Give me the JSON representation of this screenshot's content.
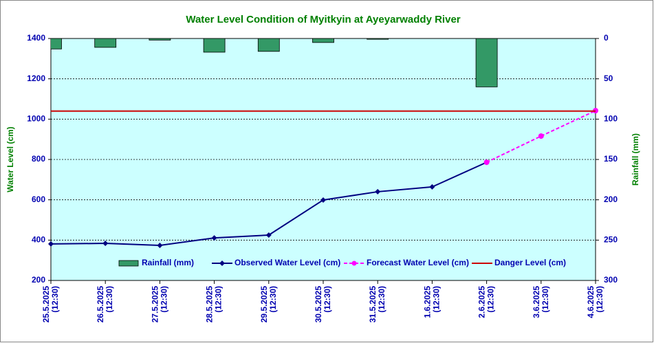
{
  "chart_data": {
    "type": "line",
    "title": "Water Level Condition of Myitkyin at Ayeyarwaddy River",
    "y_label": "Water Level (cm)",
    "y2_label": "Rainfall (mm)",
    "categories": [
      "25.5.2025 (12:30)",
      "26.5.2025 (12:30)",
      "27.5.2025 (12:30)",
      "28.5.2025 (12:30)",
      "29.5.2025 (12:30)",
      "30.5.2025 (12:30)",
      "31.5.2025 (12:30)",
      "1.6.2025 (12:30)",
      "2.6.2025 (12:30)",
      "3.6.2025 (12:30)",
      "4.6.2025 (12:30)"
    ],
    "series": [
      {
        "name": "Rainfall (mm)",
        "type": "bar",
        "axis": "y2",
        "color": "#339966",
        "values": [
          13,
          11,
          2,
          17,
          16,
          5,
          1,
          0,
          60,
          null,
          null
        ]
      },
      {
        "name": "Observed Water Level (cm)",
        "type": "line",
        "color": "#000080",
        "marker": "diamond",
        "values": [
          381,
          384,
          374,
          411,
          425,
          599,
          640,
          664,
          786,
          null,
          null
        ]
      },
      {
        "name": "Forecast Water Level (cm)",
        "type": "line",
        "color": "#ff00ff",
        "marker": "circle",
        "dashed": true,
        "values": [
          null,
          null,
          null,
          null,
          null,
          null,
          null,
          null,
          786,
          916,
          1042
        ]
      },
      {
        "name": "Danger Level (cm)",
        "type": "line",
        "color": "#cc0000",
        "values": [
          1040,
          1040,
          1040,
          1040,
          1040,
          1040,
          1040,
          1040,
          1040,
          1040,
          1040
        ]
      }
    ],
    "ylim": [
      200,
      1400
    ],
    "yticks": [
      200,
      400,
      600,
      800,
      1000,
      1200,
      1400
    ],
    "y2lim": [
      300,
      0
    ],
    "y2ticks": [
      0,
      50,
      100,
      150,
      200,
      250,
      300
    ],
    "grid": true
  }
}
